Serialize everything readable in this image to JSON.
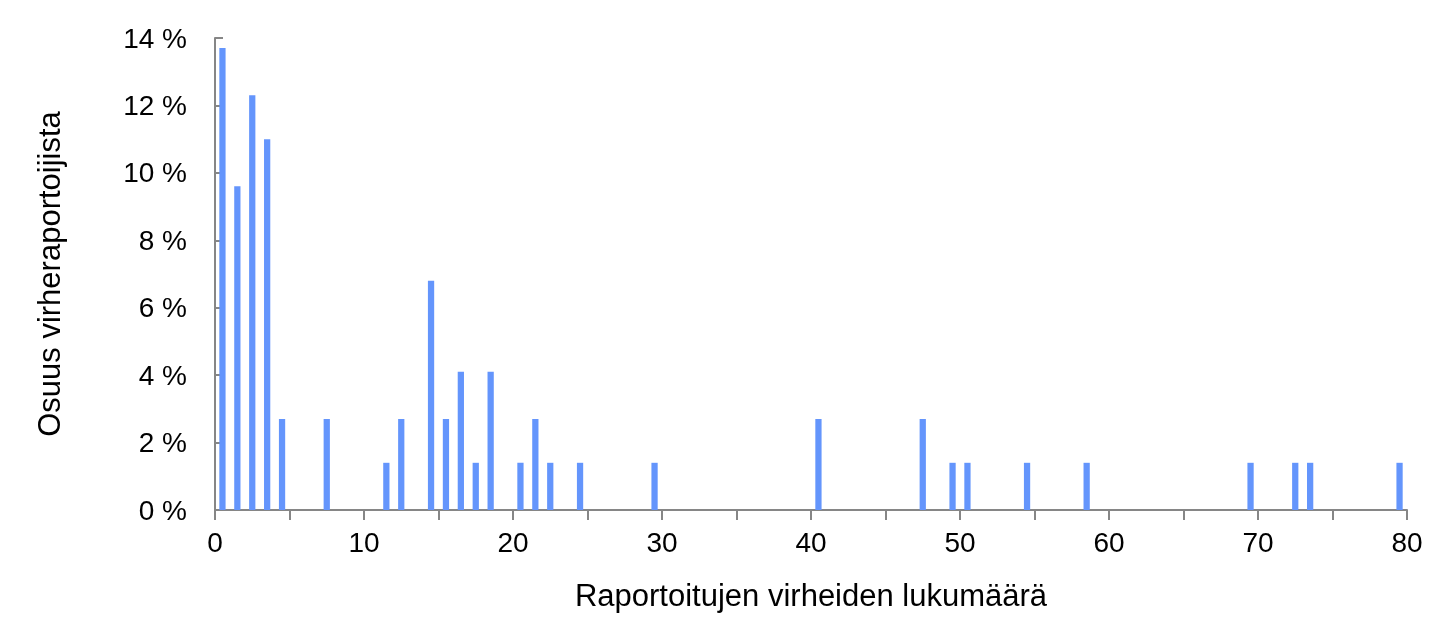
{
  "chart_data": {
    "type": "histogram",
    "xlabel": "Raportoitujen virheiden lukumäärä",
    "ylabel": "Osuus virheraportoijista",
    "bins": [
      0,
      1,
      2,
      3,
      4,
      5,
      6,
      7,
      8,
      9,
      10,
      11,
      12,
      13,
      14,
      15,
      16,
      17,
      18,
      19,
      20,
      21,
      22,
      23,
      24,
      25,
      26,
      27,
      28,
      29,
      30,
      31,
      32,
      33,
      34,
      35,
      36,
      37,
      38,
      39,
      40,
      41,
      42,
      43,
      44,
      45,
      46,
      47,
      48,
      49,
      50,
      51,
      52,
      53,
      54,
      55,
      56,
      57,
      58,
      59,
      60,
      61,
      62,
      63,
      64,
      65,
      66,
      67,
      68,
      69,
      70,
      71,
      72,
      73,
      74,
      75,
      76,
      77,
      78,
      79,
      80
    ],
    "values": [
      13.7,
      9.6,
      12.3,
      11.0,
      2.7,
      0,
      0,
      2.7,
      0,
      0,
      0,
      1.4,
      2.7,
      0,
      6.8,
      2.7,
      4.1,
      1.4,
      4.1,
      0,
      1.4,
      2.7,
      1.4,
      0,
      1.4,
      0,
      0,
      0,
      0,
      1.4,
      0,
      0,
      0,
      0,
      0,
      0,
      0,
      0,
      0,
      0,
      2.7,
      0,
      0,
      0,
      0,
      0,
      0,
      2.7,
      0,
      1.4,
      1.4,
      0,
      0,
      0,
      1.4,
      0,
      0,
      0,
      1.4,
      0,
      0,
      0,
      0,
      0,
      0,
      0,
      0,
      0,
      0,
      1.4,
      0,
      0,
      1.4,
      1.4,
      0,
      0,
      0,
      0,
      0,
      1.4
    ],
    "color": "#6495fc",
    "xlim": [
      0,
      80
    ],
    "xticks": [
      0,
      {
        "value": 5,
        "label": null
      },
      10,
      {
        "value": 15,
        "label": null
      },
      20,
      {
        "value": 25,
        "label": null
      },
      30,
      {
        "value": 35,
        "label": null
      },
      40,
      {
        "value": 45,
        "label": null
      },
      50,
      {
        "value": 55,
        "label": null
      },
      60,
      {
        "value": 65,
        "label": null
      },
      70,
      {
        "value": 75,
        "label": null
      },
      80
    ],
    "ylim": [
      0,
      14
    ],
    "yticks": [
      {
        "value": 0,
        "label": "0 %"
      },
      {
        "value": 2,
        "label": "2 %"
      },
      {
        "value": 4,
        "label": "4 %"
      },
      {
        "value": 6,
        "label": "6 %"
      },
      {
        "value": 8,
        "label": "8 %"
      },
      {
        "value": 10,
        "label": "10 %"
      },
      {
        "value": 12,
        "label": "12 %"
      },
      {
        "value": 14,
        "label": "14 %"
      }
    ],
    "grid": false
  }
}
